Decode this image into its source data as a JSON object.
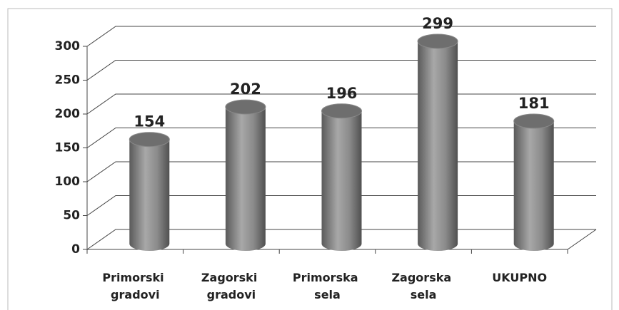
{
  "chart_data": {
    "type": "bar3d",
    "categories": [
      "Primorski gradovi",
      "Zagorski gradovi",
      "Primorska sela",
      "Zagorska sela",
      "UKUPNO"
    ],
    "values": [
      154,
      202,
      196,
      299,
      181
    ],
    "color": "#7a7a7a",
    "ylim": [
      0,
      300
    ],
    "yticks": [
      0,
      50,
      100,
      150,
      200,
      250,
      300
    ],
    "grid": true
  }
}
